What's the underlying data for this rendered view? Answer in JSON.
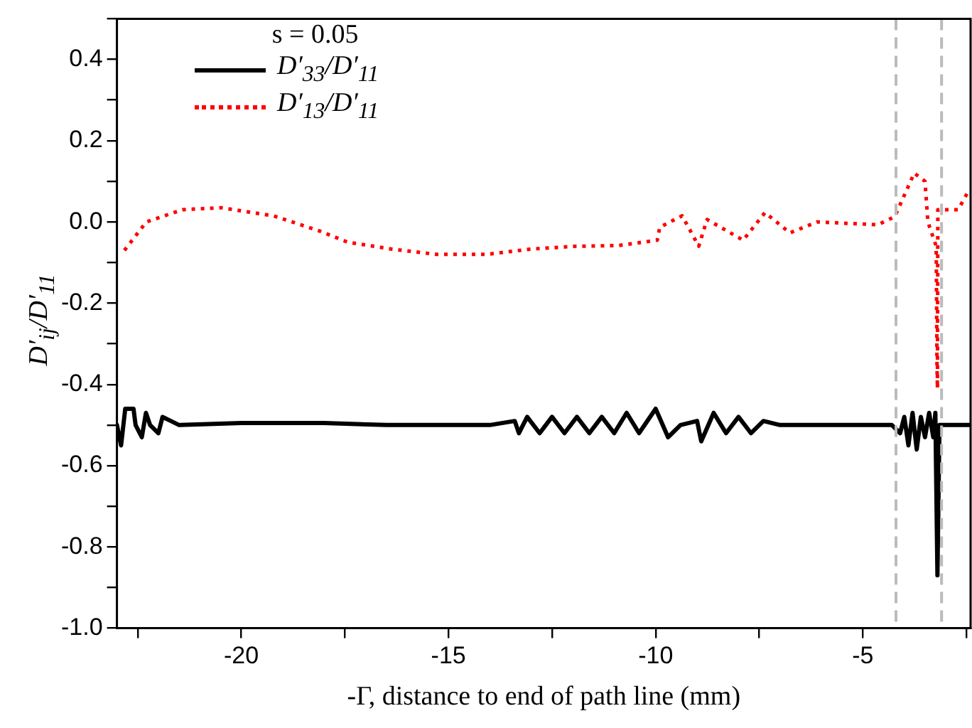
{
  "chart_data": {
    "type": "line",
    "xlabel": "-Γ, distance to end of path line (mm)",
    "ylabel": "D′$_{ij}$/D′$_{11}$",
    "legend_title": "s = 0.05",
    "legend": "top left",
    "grid": false,
    "marker": "none",
    "xlim": [
      -23,
      -2.4
    ],
    "xticks": [
      {
        "value": -22.5,
        "label": null
      },
      -20,
      {
        "value": -17.5,
        "label": null
      },
      -15,
      {
        "value": -12.5,
        "label": null
      },
      -10,
      {
        "value": -7.5,
        "label": null
      },
      -5,
      {
        "value": -2.5,
        "label": null
      }
    ],
    "ylim": [
      -1,
      0.5
    ],
    "yticks": [
      {
        "value": -1,
        "label": "-1.0"
      },
      {
        "value": -0.9,
        "label": null
      },
      {
        "value": -0.8,
        "label": "-0.8"
      },
      {
        "value": -0.7,
        "label": null
      },
      {
        "value": -0.6,
        "label": "-0.6"
      },
      {
        "value": -0.5,
        "label": null
      },
      {
        "value": -0.4,
        "label": "-0.4"
      },
      {
        "value": -0.3,
        "label": null
      },
      {
        "value": -0.2,
        "label": "-0.2"
      },
      {
        "value": -0.1,
        "label": null
      },
      {
        "value": 0,
        "label": "0.0"
      },
      {
        "value": 0.1,
        "label": null
      },
      {
        "value": 0.2,
        "label": "0.2"
      },
      {
        "value": 0.3,
        "label": null
      },
      {
        "value": 0.4,
        "label": "0.4"
      },
      {
        "value": 0.5,
        "label": null
      }
    ],
    "ref_lines": [
      {
        "axis": "x",
        "value": -4.2,
        "color": "#bbbbbb",
        "line_style": "dashed"
      },
      {
        "axis": "x",
        "value": -3.1,
        "color": "#bbbbbb",
        "line_style": "dashed"
      }
    ],
    "series": [
      {
        "name": "D′$_{33}$/D′$_{11}$",
        "color": "#000000",
        "line_style": "solid",
        "x": [
          -23.0,
          -22.9,
          -22.8,
          -22.6,
          -22.55,
          -22.4,
          -22.3,
          -22.2,
          -22.0,
          -21.9,
          -21.7,
          -21.5,
          -20,
          -18,
          -16.5,
          -14,
          -13.4,
          -13.3,
          -13.1,
          -12.8,
          -12.5,
          -12.2,
          -11.9,
          -11.6,
          -11.3,
          -11.0,
          -10.7,
          -10.4,
          -10.0,
          -9.7,
          -9.4,
          -9.0,
          -8.9,
          -8.6,
          -8.3,
          -8.0,
          -7.7,
          -7.4,
          -7.0,
          -4.3,
          -4.1,
          -4.0,
          -3.9,
          -3.8,
          -3.7,
          -3.6,
          -3.5,
          -3.4,
          -3.3,
          -3.25,
          -3.2,
          -3.15,
          -2.4
        ],
        "values": [
          -0.5,
          -0.55,
          -0.46,
          -0.46,
          -0.5,
          -0.53,
          -0.47,
          -0.5,
          -0.52,
          -0.48,
          -0.49,
          -0.5,
          -0.495,
          -0.495,
          -0.5,
          -0.5,
          -0.49,
          -0.52,
          -0.48,
          -0.52,
          -0.48,
          -0.52,
          -0.48,
          -0.52,
          -0.48,
          -0.52,
          -0.47,
          -0.52,
          -0.46,
          -0.53,
          -0.5,
          -0.49,
          -0.54,
          -0.47,
          -0.52,
          -0.48,
          -0.52,
          -0.49,
          -0.5,
          -0.5,
          -0.52,
          -0.48,
          -0.55,
          -0.47,
          -0.56,
          -0.48,
          -0.53,
          -0.47,
          -0.53,
          -0.47,
          -0.87,
          -0.5,
          -0.5
        ]
      },
      {
        "name": "D′$_{13}$/D′$_{11}$",
        "color": "#ff0000",
        "line_style": "dotted",
        "x": [
          -22.82,
          -22.29,
          -21.42,
          -20.49,
          -19.22,
          -18.09,
          -17.43,
          -16.36,
          -15.29,
          -14.09,
          -13.03,
          -11.96,
          -10.89,
          -9.96,
          -9.9,
          -9.36,
          -8.96,
          -8.76,
          -7.89,
          -7.36,
          -6.76,
          -6.1,
          -4.64,
          -4.23,
          -3.76,
          -3.5,
          -3.43,
          -3.23,
          -3.21,
          -3.2,
          -3.19,
          -2.7,
          -2.43
        ],
        "values": [
          -0.07,
          0.0,
          0.03,
          0.035,
          0.015,
          -0.023,
          -0.05,
          -0.067,
          -0.08,
          -0.08,
          -0.067,
          -0.06,
          -0.058,
          -0.045,
          -0.013,
          0.015,
          -0.06,
          0.006,
          -0.045,
          0.023,
          -0.027,
          0.0,
          -0.007,
          0.013,
          0.12,
          0.1,
          0.0,
          -0.06,
          -0.35,
          -0.41,
          0.03,
          0.03,
          0.08
        ]
      }
    ]
  }
}
